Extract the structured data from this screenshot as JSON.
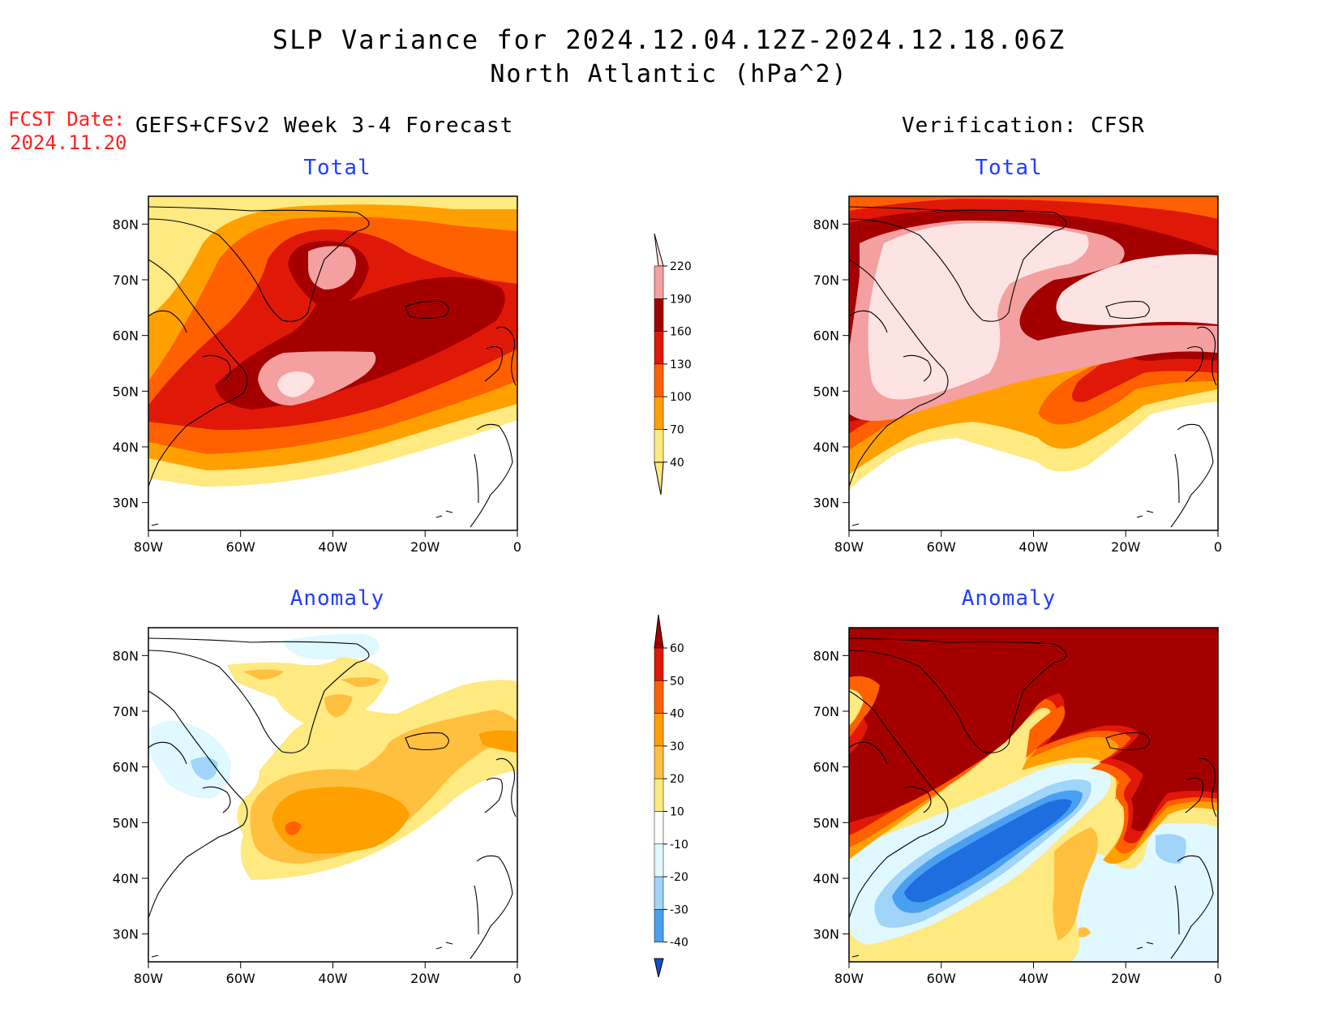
{
  "title": "SLP Variance for 2024.12.04.12Z-2024.12.18.06Z",
  "subtitle": "North Atlantic (hPa^2)",
  "fcst_label": "FCST Date:",
  "fcst_date": "2024.11.20",
  "left_header": "GEFS+CFSv2 Week 3-4 Forecast",
  "right_header": "Verification: CFSR",
  "panels": {
    "top_left": "Total",
    "top_right": "Total",
    "bottom_left": "Anomaly",
    "bottom_right": "Anomaly"
  },
  "axes": {
    "lat_labels": [
      "80N",
      "70N",
      "60N",
      "50N",
      "40N",
      "30N"
    ],
    "lat_values": [
      80,
      70,
      60,
      50,
      40,
      30
    ],
    "lon_labels": [
      "80W",
      "60W",
      "40W",
      "20W",
      "0"
    ],
    "lon_values": [
      -80,
      -60,
      -40,
      -20,
      0
    ],
    "lat_range": [
      25,
      85
    ],
    "lon_range": [
      -80,
      0
    ]
  },
  "colorbar_total": {
    "levels": [
      "40",
      "70",
      "100",
      "130",
      "160",
      "190",
      "220"
    ],
    "colors": [
      "#ffe981",
      "#ffa000",
      "#ff6000",
      "#e01808",
      "#a50000",
      "#f4a0a0",
      "#fde4e2"
    ]
  },
  "colorbar_anomaly": {
    "levels": [
      "60",
      "50",
      "40",
      "30",
      "20",
      "10",
      "-10",
      "-20",
      "-30",
      "-40"
    ],
    "colors_top_to_bottom": [
      "#a50000",
      "#e01808",
      "#ff6000",
      "#ffa000",
      "#ffc040",
      "#ffe981",
      "#ffffff",
      "#e0f8ff",
      "#a0d4f8",
      "#4aa0f0",
      "#1e6ee0",
      "#1450c8"
    ]
  },
  "map_colors": {
    "t40": "#ffe981",
    "t70": "#ffa000",
    "t100": "#ff6000",
    "t130": "#e01808",
    "t160": "#a50000",
    "t190": "#f4a0a0",
    "t220": "#fde4e2",
    "a10": "#ffe981",
    "a20": "#ffc040",
    "a30": "#ffa000",
    "a40": "#ff6000",
    "a50": "#e01808",
    "a60": "#a50000",
    "an10": "#e0f8ff",
    "an20": "#a0d4f8",
    "an30": "#4aa0f0",
    "an40": "#1e6ee0"
  }
}
